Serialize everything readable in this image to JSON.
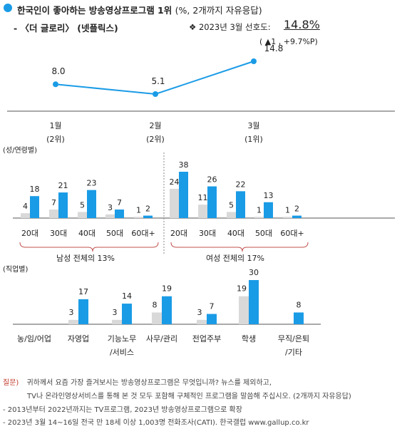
{
  "header": {
    "title": "한국인이 좋아하는 방송영상프로그램 1위",
    "title_suffix": "(%, 2개까지 자유응답)",
    "subtitle": "- 〈더 글로리〉 (넷플릭스)",
    "pref_label": "❖  2023년 3월 선호도:",
    "pref_value": "14.8%",
    "pref_change": "( ▲1 , +9.7%P)"
  },
  "colors": {
    "accent_blue": "#1a9be6",
    "gray_bar": "#d9d9d9",
    "bracket_red": "#c0504d",
    "note_red": "#c0392b"
  },
  "chart_data": [
    {
      "type": "line",
      "categories": [
        "1월",
        "2월",
        "3월"
      ],
      "category_ranks": [
        "(2위)",
        "(2위)",
        "(1위)"
      ],
      "values": [
        8.0,
        5.1,
        14.8
      ],
      "value_labels": [
        "8.0",
        "5.1",
        "14.8"
      ]
    },
    {
      "type": "bar",
      "section_label": "(성/연령별)",
      "categories": [
        "20대",
        "30대",
        "40대",
        "50대",
        "60대+",
        "20대",
        "30대",
        "40대",
        "50대",
        "60대+"
      ],
      "series": [
        {
          "values": [
            4,
            7,
            5,
            3,
            1,
            24,
            11,
            5,
            1,
            1
          ]
        },
        {
          "values": [
            18,
            21,
            23,
            7,
            2,
            38,
            26,
            22,
            13,
            2
          ]
        }
      ],
      "group_labels": [
        "남성 전체의 13%",
        "여성 전체의 17%"
      ]
    },
    {
      "type": "bar",
      "section_label": "(직업별)",
      "categories": [
        "농/임/어업",
        "자영업",
        "기능노무\n/서비스",
        "사무/관리",
        "전업주부",
        "학생",
        "무직/은퇴\n/기타"
      ],
      "series": [
        {
          "values": [
            null,
            3,
            3,
            8,
            3,
            19,
            null
          ]
        },
        {
          "values": [
            null,
            17,
            14,
            19,
            7,
            30,
            8
          ]
        }
      ]
    }
  ],
  "footer": {
    "q_label": "질문)",
    "q_line1": "귀하께서 요즘 가장 즐겨보시는 방송영상프로그램은 무엇입니까? 뉴스를 제외하고,",
    "q_line2": "TV나 온라인영상서비스를 통해 본 것 모두 포함해 구체적인 프로그램을 말씀해 주십시오. (2개까지 자유응답)",
    "note1": "- 2013년부터 2022년까지는 TV프로그램, 2023년 방송영상프로그램으로 확장",
    "note2": "- 2023년 3월 14~16일 전국 만 18세 이상 1,003명 전화조사(CATI). 한국갤럽 www.gallup.co.kr"
  }
}
